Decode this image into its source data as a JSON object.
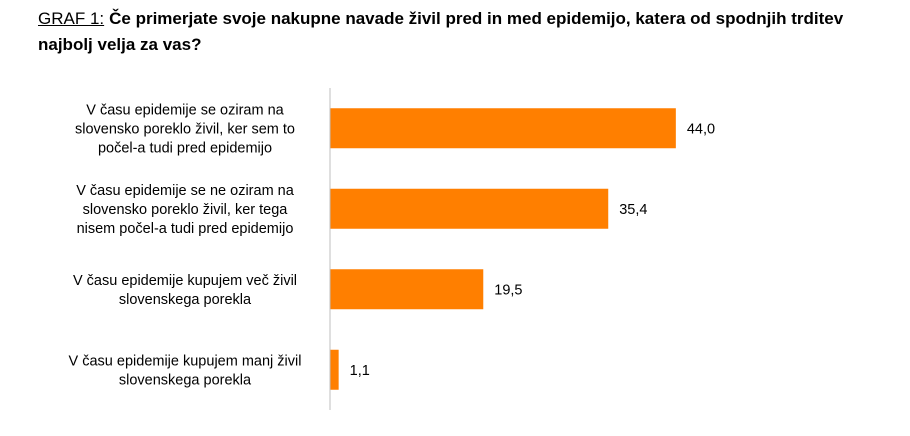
{
  "title_prefix": "GRAF 1:",
  "title": "Če primerjate svoje nakupne navade živil pred in med epidemijo, katera od spodnjih trditev najbolj velja za vas?",
  "chart_data": {
    "type": "bar",
    "orientation": "horizontal",
    "categories": [
      "V času epidemije se oziram na slovensko poreklo živil, ker sem to počel-a tudi pred epidemijo",
      "V času epidemije se ne oziram na slovensko poreklo živil, ker tega nisem počel-a tudi pred epidemijo",
      "V času epidemije kupujem več živil slovenskega porekla",
      "V času epidemije kupujem manj živil slovenskega porekla"
    ],
    "category_lines": [
      [
        "V času epidemije se oziram na",
        "slovensko poreklo živil, ker sem to",
        "počel-a tudi pred epidemijo"
      ],
      [
        "V času epidemije se ne oziram na",
        "slovensko poreklo živil, ker tega",
        "nisem počel-a tudi pred epidemijo"
      ],
      [
        "V času epidemije kupujem več živil",
        "slovenskega porekla"
      ],
      [
        "V času epidemije kupujem manj živil",
        "slovenskega porekla"
      ]
    ],
    "values": [
      44.0,
      35.4,
      19.5,
      1.1
    ],
    "value_labels": [
      "44,0",
      "35,4",
      "19,5",
      "1,1"
    ],
    "bar_color": "#FF7F00",
    "axis_color": "#BFBFBF",
    "xlim": [
      0,
      50
    ],
    "grid": false,
    "legend": "none"
  }
}
